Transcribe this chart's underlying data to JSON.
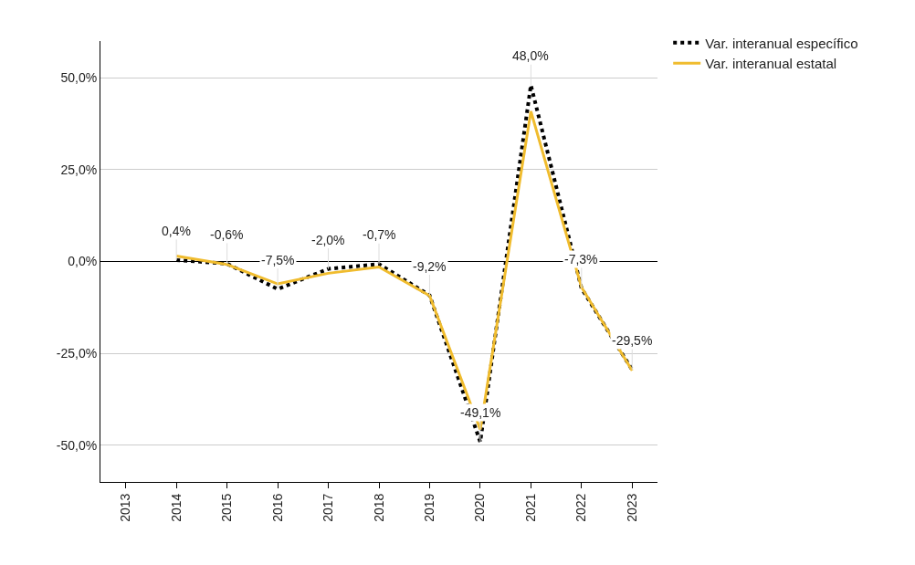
{
  "chart_data": {
    "type": "line",
    "categories": [
      "2013",
      "2014",
      "2015",
      "2016",
      "2017",
      "2018",
      "2019",
      "2020",
      "2021",
      "2022",
      "2023"
    ],
    "series": [
      {
        "name": "Var. interanual específico",
        "color": "#000000",
        "line_style": "dotted",
        "values": [
          null,
          0.4,
          -0.6,
          -7.5,
          -2.0,
          -0.7,
          -9.2,
          -49.1,
          48.0,
          -7.3,
          -29.5
        ],
        "value_labels": [
          null,
          "0,4%",
          "-0,6%",
          "-7,5%",
          "-2,0%",
          "-0,7%",
          "-9,2%",
          "-49,1%",
          "48,0%",
          "-7,3%",
          "-29,5%"
        ]
      },
      {
        "name": "Var. interanual estatal",
        "color": "#f0bc2e",
        "line_style": "solid",
        "values": [
          null,
          1.5,
          -0.8,
          -6.1,
          -3.2,
          -1.5,
          -9.3,
          -45.7,
          40.9,
          -7.0,
          -29.7
        ]
      }
    ],
    "ylim": [
      -60,
      60
    ],
    "yticks": [
      {
        "value": -50,
        "label": "-50,0%"
      },
      {
        "value": -25,
        "label": "-25,0%"
      },
      {
        "value": 0,
        "label": "0,0%"
      },
      {
        "value": 25,
        "label": "25,0%"
      },
      {
        "value": 50,
        "label": "50,0%"
      }
    ],
    "grid": "y",
    "legend": "top right",
    "marker": "none"
  }
}
